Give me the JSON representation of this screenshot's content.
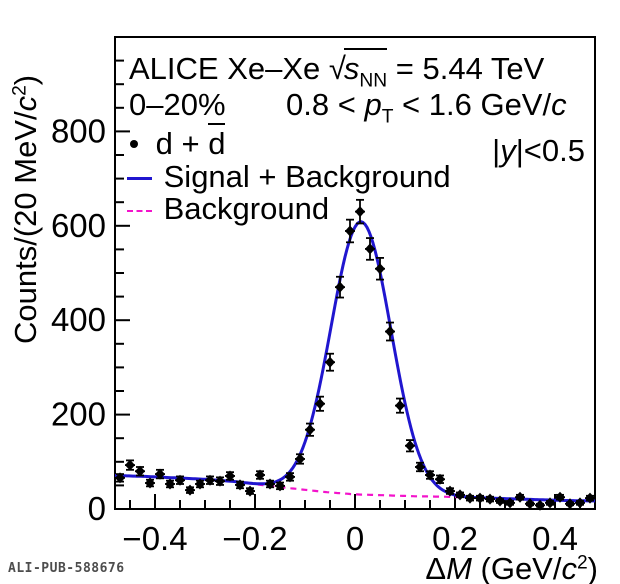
{
  "watermark": "ALI-PUB-588676",
  "colors": {
    "signal": "#2016cf",
    "background": "#f313cb",
    "marker": "#000000",
    "frame": "#000000"
  },
  "annotations": {
    "alice": "ALICE Xe–Xe ",
    "sqrt_sign": "√",
    "s_italic": "s",
    "s_sub": "NN",
    "energy": " = 5.44 TeV",
    "centrality": "0–20%",
    "pt_prefix": "0.8 < ",
    "pt_symbol": "p",
    "pt_sub": "T",
    "pt_suffix": " < 1.6 GeV/",
    "pt_c": "c",
    "rapidity_bar1": "|",
    "rapidity_y": "y",
    "rapidity_rest": "|<0.5"
  },
  "legend": {
    "data_prefix": "d + ",
    "data_dbar": "d",
    "signal_label": "Signal + Background",
    "background_label": "Background"
  },
  "axes": {
    "y_title": {
      "prefix": "Counts/(20 MeV/",
      "c": "c",
      "sup": "2",
      "close": ")"
    },
    "x_title": {
      "delta": "Δ",
      "M": "M",
      "mid": " (GeV/",
      "c": "c",
      "sup": "2",
      "close": ")"
    },
    "x_ticks": [
      {
        "v": -0.4,
        "label": "−0.4"
      },
      {
        "v": -0.2,
        "label": "−0.2"
      },
      {
        "v": 0,
        "label": "0"
      },
      {
        "v": 0.2,
        "label": "0.2"
      },
      {
        "v": 0.4,
        "label": "0.4"
      }
    ],
    "y_ticks": [
      {
        "v": 0,
        "label": "0"
      },
      {
        "v": 200,
        "label": "200"
      },
      {
        "v": 400,
        "label": "400"
      },
      {
        "v": 600,
        "label": "600"
      },
      {
        "v": 800,
        "label": "800"
      }
    ],
    "x_minor_step": 0.05,
    "y_minor_step": 50
  },
  "chart_data": {
    "type": "composite",
    "title": "ALICE Xe–Xe sqrt(s_NN) = 5.44 TeV, 0–20%, 0.8 < pT < 1.6 GeV/c, |y|<0.5",
    "xlabel": "ΔM (GeV/c^2)",
    "ylabel": "Counts/(20 MeV/c^2)",
    "xlim": [
      -0.48,
      0.48
    ],
    "ylim": [
      0,
      1000
    ],
    "grid": false,
    "legend_position": "top-left-inside",
    "series": [
      {
        "name": "d + dbar data",
        "type": "scatter",
        "marker": "filled-diamond",
        "x": [
          -0.47,
          -0.45,
          -0.43,
          -0.41,
          -0.39,
          -0.37,
          -0.35,
          -0.33,
          -0.31,
          -0.29,
          -0.27,
          -0.25,
          -0.23,
          -0.21,
          -0.19,
          -0.17,
          -0.15,
          -0.13,
          -0.11,
          -0.09,
          -0.07,
          -0.05,
          -0.03,
          -0.01,
          0.01,
          0.03,
          0.05,
          0.07,
          0.09,
          0.11,
          0.13,
          0.15,
          0.17,
          0.19,
          0.21,
          0.23,
          0.25,
          0.27,
          0.29,
          0.31,
          0.33,
          0.35,
          0.37,
          0.39,
          0.41,
          0.43,
          0.45,
          0.47
        ],
        "y": [
          66,
          93,
          80,
          55,
          74,
          53,
          61,
          40,
          53,
          61,
          59,
          70,
          51,
          38,
          72,
          53,
          49,
          68,
          106,
          168,
          223,
          311,
          470,
          589,
          630,
          551,
          509,
          376,
          219,
          134,
          89,
          72,
          63,
          38,
          30,
          23,
          23,
          21,
          17,
          13,
          25,
          11,
          8,
          13,
          25,
          11,
          13,
          23
        ],
        "yerr": [
          8,
          10,
          9,
          7,
          9,
          7,
          8,
          6,
          7,
          8,
          8,
          8,
          7,
          6,
          8,
          7,
          7,
          8,
          10,
          13,
          15,
          18,
          22,
          24,
          25,
          23,
          23,
          19,
          15,
          12,
          9,
          8,
          8,
          6,
          5,
          5,
          5,
          5,
          4,
          4,
          5,
          3,
          3,
          4,
          5,
          3,
          4,
          5
        ]
      },
      {
        "name": "Signal + Background",
        "type": "line",
        "style": "solid",
        "model": "gaussian_plus_background",
        "gaussian": {
          "amplitude": 578,
          "mean": 0.012,
          "sigma": 0.06
        }
      },
      {
        "name": "Background",
        "type": "line",
        "style": "dashed",
        "points": [
          [
            -0.48,
            71
          ],
          [
            -0.42,
            69
          ],
          [
            -0.36,
            66
          ],
          [
            -0.3,
            63
          ],
          [
            -0.24,
            58
          ],
          [
            -0.18,
            50
          ],
          [
            -0.12,
            43
          ],
          [
            -0.06,
            36
          ],
          [
            0,
            31
          ],
          [
            0.06,
            29
          ],
          [
            0.12,
            27
          ],
          [
            0.18,
            26
          ],
          [
            0.24,
            24
          ],
          [
            0.3,
            22
          ],
          [
            0.36,
            20
          ],
          [
            0.42,
            18
          ],
          [
            0.48,
            17
          ]
        ]
      }
    ]
  }
}
